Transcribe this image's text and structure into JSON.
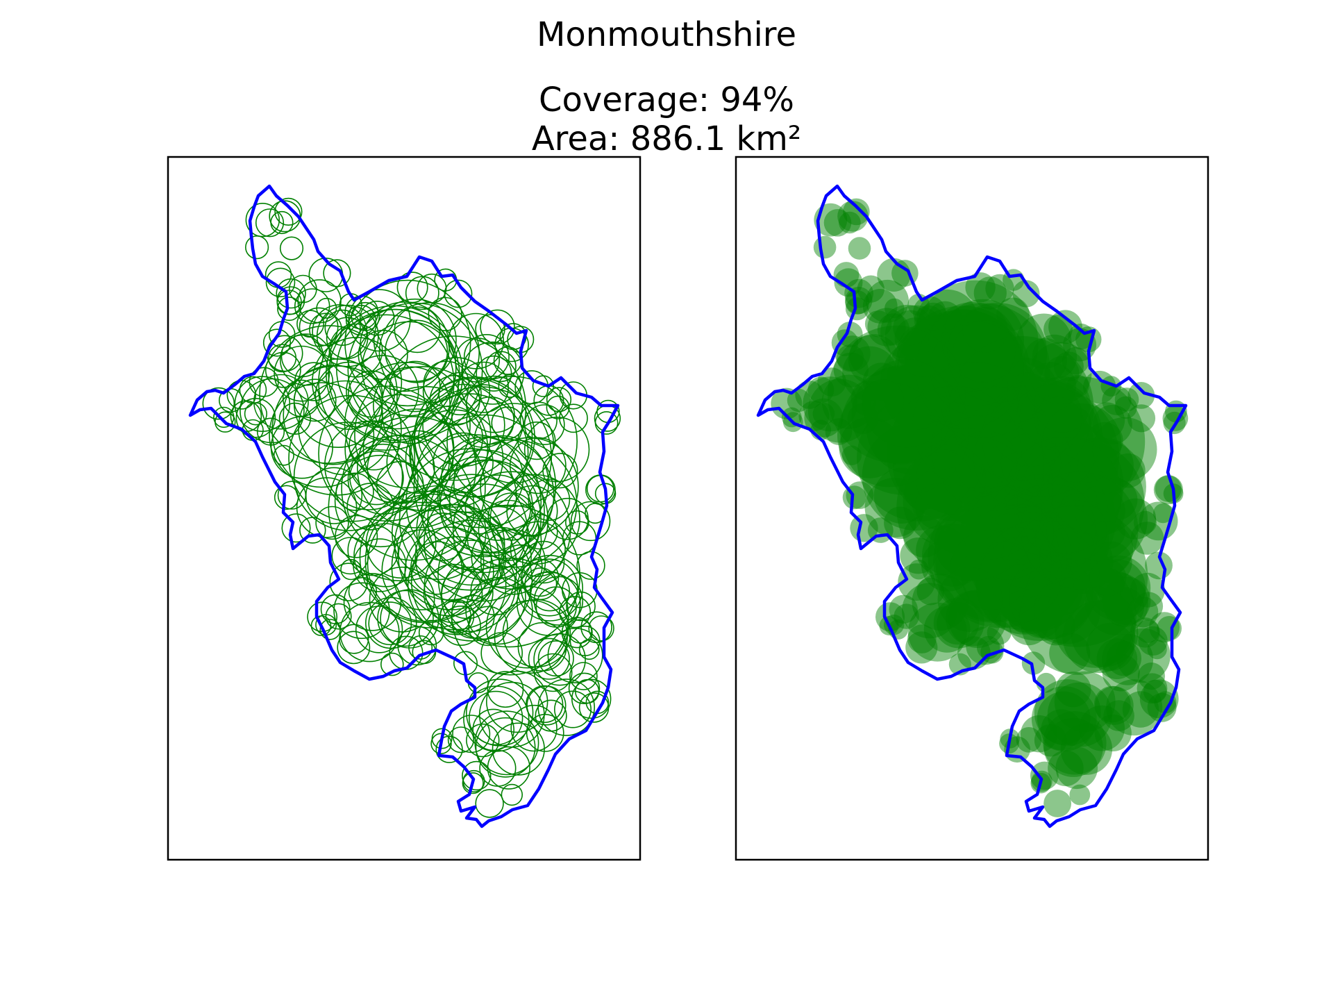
{
  "figure": {
    "title": "Monmouthshire",
    "coverage_label": "Coverage: 94%",
    "area_label": "Area: 886.1 km²"
  },
  "colors": {
    "boundary": "#0000ff",
    "circles": "#008000",
    "frame": "#000000",
    "background": "#ffffff"
  },
  "panels": [
    {
      "name": "circle-outlines-panel",
      "style": "outline"
    },
    {
      "name": "circle-filled-panel",
      "style": "filled"
    }
  ],
  "chart_data": {
    "type": "map",
    "region": "Monmouthshire",
    "coverage_percent": 94,
    "area_km2": 886.1,
    "legend": "none",
    "grid": false
  }
}
